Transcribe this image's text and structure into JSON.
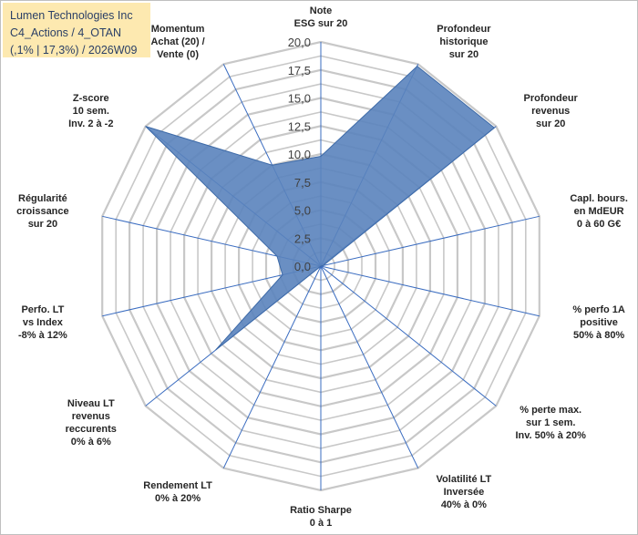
{
  "title_box": {
    "line1": "Lumen Technologies Inc",
    "line2": "C4_Actions / 4_OTAN",
    "line3": "(,1% | 17,3%) / 2026W09"
  },
  "colors": {
    "fill": "#5a83bd",
    "stroke": "#3d6aa8",
    "grid": "#c8c8c8",
    "spoke": "#3a6cc0",
    "title_bg": "#fde9b0",
    "title_text": "#2a3f66"
  },
  "chart_data": {
    "type": "radar",
    "r_range": [
      0,
      20
    ],
    "ticks": [
      "0,0",
      "2,5",
      "5,0",
      "7,5",
      "10,0",
      "12,5",
      "15,0",
      "17,5",
      "20,0"
    ],
    "axes": [
      {
        "label": [
          "Note",
          "ESG sur 20"
        ],
        "value": 9.8
      },
      {
        "label": [
          "Profondeur",
          "historique",
          "sur 20"
        ],
        "value": 19.8
      },
      {
        "label": [
          "Profondeur",
          "revenus",
          "sur 20"
        ],
        "value": 19.8
      },
      {
        "label": [
          "Capl. bours.",
          "en MdEUR",
          "0 à 60 G€"
        ],
        "value": 0.2
      },
      {
        "label": [
          "% perfo 1A",
          "positive",
          "50% à 80%"
        ],
        "value": 0.0
      },
      {
        "label": [
          "% perte max.",
          "sur 1 sem.",
          "Inv. 50% à 20%"
        ],
        "value": 0.0
      },
      {
        "label": [
          "Volatilité LT",
          "Inversée",
          "40% à 0%"
        ],
        "value": 0.0
      },
      {
        "label": [
          "Ratio Sharpe",
          "0 à 1"
        ],
        "value": 0.0
      },
      {
        "label": [
          "Rendement LT",
          "0% à 20%"
        ],
        "value": 0.0
      },
      {
        "label": [
          "Niveau LT",
          "revenus",
          "reccurents",
          "0% à 6%"
        ],
        "value": 12.0
      },
      {
        "label": [
          "Perfo. LT",
          "vs Index",
          "-8% à 12%"
        ],
        "value": 3.5
      },
      {
        "label": [
          "Régularité",
          "croissance",
          "sur 20"
        ],
        "value": 4.0
      },
      {
        "label": [
          "Z-score",
          "10 sem.",
          "Inv. 2 à -2"
        ],
        "value": 20.0
      },
      {
        "label": [
          "Momentum",
          "Achat (20) /",
          "Vente (0)"
        ],
        "value": 10.0
      }
    ]
  }
}
